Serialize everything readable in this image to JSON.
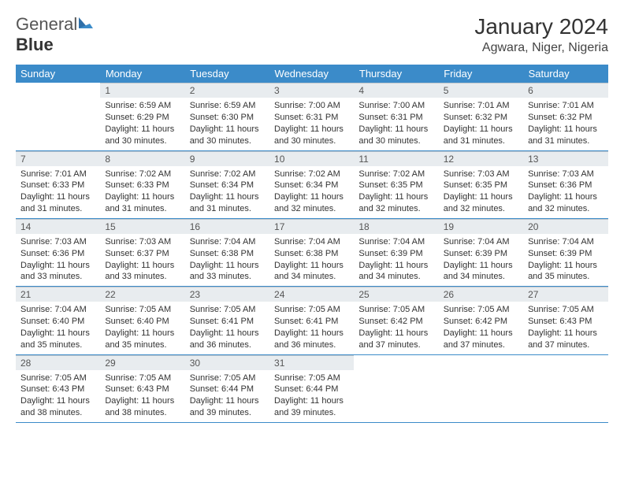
{
  "logo": {
    "text_general": "General",
    "text_blue": "Blue"
  },
  "header": {
    "title": "January 2024",
    "location": "Agwara, Niger, Nigeria"
  },
  "colors": {
    "header_bg": "#3b8bc9",
    "header_text": "#ffffff",
    "daynum_bg": "#e8ecef",
    "daynum_text": "#555555",
    "body_text": "#333333",
    "rule": "#3b8bc9"
  },
  "weekdays": [
    "Sunday",
    "Monday",
    "Tuesday",
    "Wednesday",
    "Thursday",
    "Friday",
    "Saturday"
  ],
  "first_weekday_index": 1,
  "days": [
    {
      "n": 1,
      "sr": "6:59 AM",
      "ss": "6:29 PM",
      "dl": "11 hours and 30 minutes."
    },
    {
      "n": 2,
      "sr": "6:59 AM",
      "ss": "6:30 PM",
      "dl": "11 hours and 30 minutes."
    },
    {
      "n": 3,
      "sr": "7:00 AM",
      "ss": "6:31 PM",
      "dl": "11 hours and 30 minutes."
    },
    {
      "n": 4,
      "sr": "7:00 AM",
      "ss": "6:31 PM",
      "dl": "11 hours and 30 minutes."
    },
    {
      "n": 5,
      "sr": "7:01 AM",
      "ss": "6:32 PM",
      "dl": "11 hours and 31 minutes."
    },
    {
      "n": 6,
      "sr": "7:01 AM",
      "ss": "6:32 PM",
      "dl": "11 hours and 31 minutes."
    },
    {
      "n": 7,
      "sr": "7:01 AM",
      "ss": "6:33 PM",
      "dl": "11 hours and 31 minutes."
    },
    {
      "n": 8,
      "sr": "7:02 AM",
      "ss": "6:33 PM",
      "dl": "11 hours and 31 minutes."
    },
    {
      "n": 9,
      "sr": "7:02 AM",
      "ss": "6:34 PM",
      "dl": "11 hours and 31 minutes."
    },
    {
      "n": 10,
      "sr": "7:02 AM",
      "ss": "6:34 PM",
      "dl": "11 hours and 32 minutes."
    },
    {
      "n": 11,
      "sr": "7:02 AM",
      "ss": "6:35 PM",
      "dl": "11 hours and 32 minutes."
    },
    {
      "n": 12,
      "sr": "7:03 AM",
      "ss": "6:35 PM",
      "dl": "11 hours and 32 minutes."
    },
    {
      "n": 13,
      "sr": "7:03 AM",
      "ss": "6:36 PM",
      "dl": "11 hours and 32 minutes."
    },
    {
      "n": 14,
      "sr": "7:03 AM",
      "ss": "6:36 PM",
      "dl": "11 hours and 33 minutes."
    },
    {
      "n": 15,
      "sr": "7:03 AM",
      "ss": "6:37 PM",
      "dl": "11 hours and 33 minutes."
    },
    {
      "n": 16,
      "sr": "7:04 AM",
      "ss": "6:38 PM",
      "dl": "11 hours and 33 minutes."
    },
    {
      "n": 17,
      "sr": "7:04 AM",
      "ss": "6:38 PM",
      "dl": "11 hours and 34 minutes."
    },
    {
      "n": 18,
      "sr": "7:04 AM",
      "ss": "6:39 PM",
      "dl": "11 hours and 34 minutes."
    },
    {
      "n": 19,
      "sr": "7:04 AM",
      "ss": "6:39 PM",
      "dl": "11 hours and 34 minutes."
    },
    {
      "n": 20,
      "sr": "7:04 AM",
      "ss": "6:39 PM",
      "dl": "11 hours and 35 minutes."
    },
    {
      "n": 21,
      "sr": "7:04 AM",
      "ss": "6:40 PM",
      "dl": "11 hours and 35 minutes."
    },
    {
      "n": 22,
      "sr": "7:05 AM",
      "ss": "6:40 PM",
      "dl": "11 hours and 35 minutes."
    },
    {
      "n": 23,
      "sr": "7:05 AM",
      "ss": "6:41 PM",
      "dl": "11 hours and 36 minutes."
    },
    {
      "n": 24,
      "sr": "7:05 AM",
      "ss": "6:41 PM",
      "dl": "11 hours and 36 minutes."
    },
    {
      "n": 25,
      "sr": "7:05 AM",
      "ss": "6:42 PM",
      "dl": "11 hours and 37 minutes."
    },
    {
      "n": 26,
      "sr": "7:05 AM",
      "ss": "6:42 PM",
      "dl": "11 hours and 37 minutes."
    },
    {
      "n": 27,
      "sr": "7:05 AM",
      "ss": "6:43 PM",
      "dl": "11 hours and 37 minutes."
    },
    {
      "n": 28,
      "sr": "7:05 AM",
      "ss": "6:43 PM",
      "dl": "11 hours and 38 minutes."
    },
    {
      "n": 29,
      "sr": "7:05 AM",
      "ss": "6:43 PM",
      "dl": "11 hours and 38 minutes."
    },
    {
      "n": 30,
      "sr": "7:05 AM",
      "ss": "6:44 PM",
      "dl": "11 hours and 39 minutes."
    },
    {
      "n": 31,
      "sr": "7:05 AM",
      "ss": "6:44 PM",
      "dl": "11 hours and 39 minutes."
    }
  ],
  "labels": {
    "sunrise": "Sunrise:",
    "sunset": "Sunset:",
    "daylight": "Daylight:"
  }
}
